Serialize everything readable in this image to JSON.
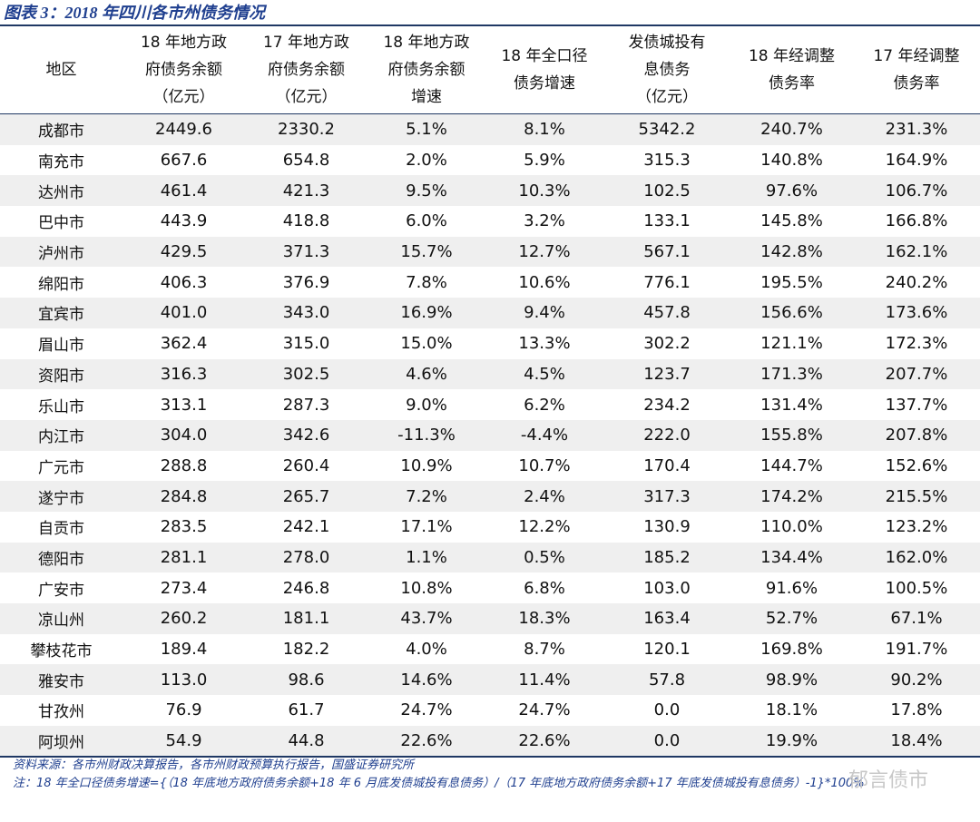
{
  "header": {
    "title": "图表 3：2018 年四川各市州债务情况"
  },
  "table": {
    "columns": [
      [
        "地区"
      ],
      [
        "18 年地方政",
        "府债务余额",
        "（亿元）"
      ],
      [
        "17 年地方政",
        "府债务余额",
        "（亿元）"
      ],
      [
        "18 年地方政",
        "府债务余额",
        "增速"
      ],
      [
        "18 年全口径",
        "债务增速"
      ],
      [
        "发债城投有",
        "息债务",
        "（亿元）"
      ],
      [
        "18 年经调整",
        "债务率"
      ],
      [
        "17 年经调整",
        "债务率"
      ]
    ],
    "rows": [
      [
        "成都市",
        "2449.6",
        "2330.2",
        "5.1%",
        "8.1%",
        "5342.2",
        "240.7%",
        "231.3%"
      ],
      [
        "南充市",
        "667.6",
        "654.8",
        "2.0%",
        "5.9%",
        "315.3",
        "140.8%",
        "164.9%"
      ],
      [
        "达州市",
        "461.4",
        "421.3",
        "9.5%",
        "10.3%",
        "102.5",
        "97.6%",
        "106.7%"
      ],
      [
        "巴中市",
        "443.9",
        "418.8",
        "6.0%",
        "3.2%",
        "133.1",
        "145.8%",
        "166.8%"
      ],
      [
        "泸州市",
        "429.5",
        "371.3",
        "15.7%",
        "12.7%",
        "567.1",
        "142.8%",
        "162.1%"
      ],
      [
        "绵阳市",
        "406.3",
        "376.9",
        "7.8%",
        "10.6%",
        "776.1",
        "195.5%",
        "240.2%"
      ],
      [
        "宜宾市",
        "401.0",
        "343.0",
        "16.9%",
        "9.4%",
        "457.8",
        "156.6%",
        "173.6%"
      ],
      [
        "眉山市",
        "362.4",
        "315.0",
        "15.0%",
        "13.3%",
        "302.2",
        "121.1%",
        "172.3%"
      ],
      [
        "资阳市",
        "316.3",
        "302.5",
        "4.6%",
        "4.5%",
        "123.7",
        "171.3%",
        "207.7%"
      ],
      [
        "乐山市",
        "313.1",
        "287.3",
        "9.0%",
        "6.2%",
        "234.2",
        "131.4%",
        "137.7%"
      ],
      [
        "内江市",
        "304.0",
        "342.6",
        "-11.3%",
        "-4.4%",
        "222.0",
        "155.8%",
        "207.8%"
      ],
      [
        "广元市",
        "288.8",
        "260.4",
        "10.9%",
        "10.7%",
        "170.4",
        "144.7%",
        "152.6%"
      ],
      [
        "遂宁市",
        "284.8",
        "265.7",
        "7.2%",
        "2.4%",
        "317.3",
        "174.2%",
        "215.5%"
      ],
      [
        "自贡市",
        "283.5",
        "242.1",
        "17.1%",
        "12.2%",
        "130.9",
        "110.0%",
        "123.2%"
      ],
      [
        "德阳市",
        "281.1",
        "278.0",
        "1.1%",
        "0.5%",
        "185.2",
        "134.4%",
        "162.0%"
      ],
      [
        "广安市",
        "273.4",
        "246.8",
        "10.8%",
        "6.8%",
        "103.0",
        "91.6%",
        "100.5%"
      ],
      [
        "凉山州",
        "260.2",
        "181.1",
        "43.7%",
        "18.3%",
        "163.4",
        "52.7%",
        "67.1%"
      ],
      [
        "攀枝花市",
        "189.4",
        "182.2",
        "4.0%",
        "8.7%",
        "120.1",
        "169.8%",
        "191.7%"
      ],
      [
        "雅安市",
        "113.0",
        "98.6",
        "14.6%",
        "11.4%",
        "57.8",
        "98.9%",
        "90.2%"
      ],
      [
        "甘孜州",
        "76.9",
        "61.7",
        "24.7%",
        "24.7%",
        "0.0",
        "18.1%",
        "17.8%"
      ],
      [
        "阿坝州",
        "54.9",
        "44.8",
        "22.6%",
        "22.6%",
        "0.0",
        "19.9%",
        "18.4%"
      ]
    ]
  },
  "footer": {
    "source": "资料来源：各市州财政决算报告，各市州财政预算执行报告，国盛证券研究所",
    "note": "注：18 年全口径债务增速={（18 年底地方政府债务余额+18 年 6 月底发债城投有息债务）/（17 年底地方政府债务余额+17 年底发债城投有息债务）-1}*100%",
    "watermark": "郁言债市"
  }
}
